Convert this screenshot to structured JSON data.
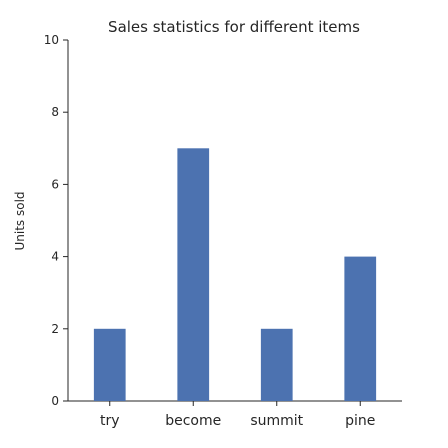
{
  "chart_data": {
    "type": "bar",
    "title": "Sales statistics for different items",
    "xlabel": "",
    "ylabel": "Units sold",
    "categories": [
      "try",
      "become",
      "summit",
      "pine"
    ],
    "values": [
      2,
      7,
      2,
      4
    ],
    "ylim": [
      0,
      10
    ],
    "yticks": [
      0,
      2,
      4,
      6,
      8,
      10
    ],
    "grid": false,
    "bar_color": "#4c72b0"
  }
}
